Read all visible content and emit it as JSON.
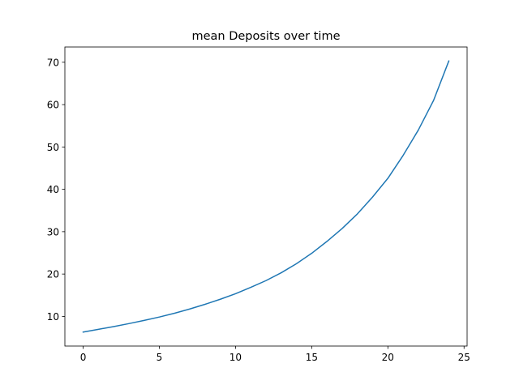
{
  "chart_data": {
    "type": "line",
    "title": "mean Deposits over time",
    "xlabel": "",
    "ylabel": "",
    "xlim": [
      -1.2,
      25.2
    ],
    "ylim": [
      3.0,
      73.6
    ],
    "grid": false,
    "legend": "none",
    "xticks": [
      0,
      5,
      10,
      15,
      20,
      25
    ],
    "xtick_labels": [
      "0",
      "5",
      "10",
      "15",
      "20",
      "25"
    ],
    "yticks": [
      10,
      20,
      30,
      40,
      50,
      60,
      70
    ],
    "ytick_labels": [
      "10",
      "20",
      "30",
      "40",
      "50",
      "60",
      "70"
    ],
    "series": [
      {
        "color": "#1f77b4",
        "x": [
          0,
          1,
          2,
          3,
          4,
          5,
          6,
          7,
          8,
          9,
          10,
          11,
          12,
          13,
          14,
          15,
          16,
          17,
          18,
          19,
          20,
          21,
          22,
          23,
          24
        ],
        "y": [
          6.3,
          6.95,
          7.6,
          8.3,
          9.05,
          9.85,
          10.75,
          11.75,
          12.85,
          14.05,
          15.35,
          16.85,
          18.45,
          20.3,
          22.45,
          24.9,
          27.7,
          30.75,
          34.2,
          38.2,
          42.6,
          48.0,
          54.0,
          61.0,
          70.3
        ]
      }
    ]
  }
}
